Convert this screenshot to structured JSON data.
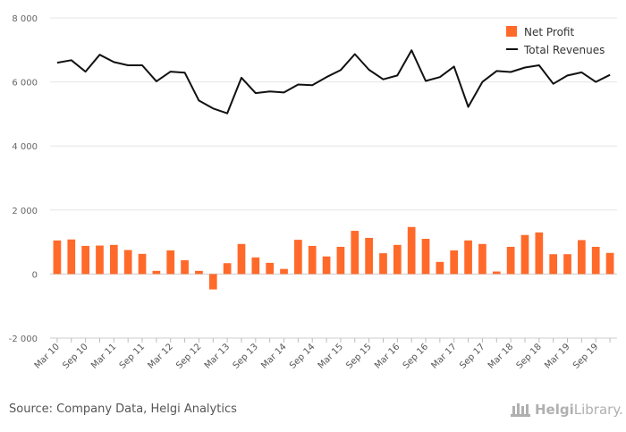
{
  "source_text": "Source: Company Data, Helgi Analytics",
  "logo": {
    "bold": "Helgi",
    "light": "Library."
  },
  "colors": {
    "bar": "#ff6a2b",
    "line": "#111111",
    "grid": "#e6e6e6",
    "zero": "#cccccc"
  },
  "chart_data": {
    "type": "bar+line",
    "title": "",
    "xlabel": "",
    "ylabel": "",
    "ylim": [
      -2000,
      8000
    ],
    "yticks": [
      -2000,
      0,
      2000,
      4000,
      6000,
      8000
    ],
    "ytick_labels": [
      "-2 000",
      "0",
      "2 000",
      "4 000",
      "6 000",
      "8 000"
    ],
    "grid": true,
    "legend": {
      "placement": "top-right",
      "entries": [
        "Net Profit",
        "Total Revenues"
      ]
    },
    "categories": [
      "Mar 10",
      "Jun 10",
      "Sep 10",
      "Dec 10",
      "Mar 11",
      "Jun 11",
      "Sep 11",
      "Dec 11",
      "Mar 12",
      "Jun 12",
      "Sep 12",
      "Dec 12",
      "Mar 13",
      "Jun 13",
      "Sep 13",
      "Dec 13",
      "Mar 14",
      "Jun 14",
      "Sep 14",
      "Dec 14",
      "Mar 15",
      "Jun 15",
      "Sep 15",
      "Dec 15",
      "Mar 16",
      "Jun 16",
      "Sep 16",
      "Dec 16",
      "Mar 17",
      "Jun 17",
      "Sep 17",
      "Dec 17",
      "Mar 18",
      "Jun 18",
      "Sep 18",
      "Dec 18",
      "Mar 19",
      "Jun 19",
      "Sep 19",
      "Dec 19"
    ],
    "x_tick_labels": [
      "Mar 10",
      "Sep 10",
      "Mar 11",
      "Sep 11",
      "Mar 12",
      "Sep 12",
      "Mar 13",
      "Sep 13",
      "Mar 14",
      "Sep 14",
      "Mar 15",
      "Sep 15",
      "Mar 16",
      "Sep 16",
      "Mar 17",
      "Sep 17",
      "Mar 18",
      "Sep 18",
      "Mar 19",
      "Sep 19"
    ],
    "series": [
      {
        "name": "Net Profit",
        "type": "bar",
        "values": [
          1050,
          1080,
          880,
          890,
          910,
          750,
          630,
          100,
          740,
          430,
          100,
          -480,
          340,
          940,
          520,
          350,
          160,
          1070,
          880,
          550,
          850,
          1350,
          1130,
          650,
          910,
          1470,
          1100,
          380,
          740,
          1050,
          940,
          80,
          850,
          1220,
          1300,
          620,
          620,
          1060,
          850,
          660
        ]
      },
      {
        "name": "Total Revenues",
        "type": "line",
        "values": [
          6600,
          6680,
          6320,
          6850,
          6620,
          6520,
          6520,
          6020,
          6320,
          6290,
          5420,
          5170,
          5020,
          6130,
          5650,
          5700,
          5670,
          5920,
          5900,
          6150,
          6370,
          6870,
          6380,
          6080,
          6200,
          6990,
          6030,
          6150,
          6480,
          5220,
          6000,
          6340,
          6310,
          6450,
          6520,
          5940,
          6200,
          6300,
          6000,
          6220
        ]
      }
    ]
  }
}
